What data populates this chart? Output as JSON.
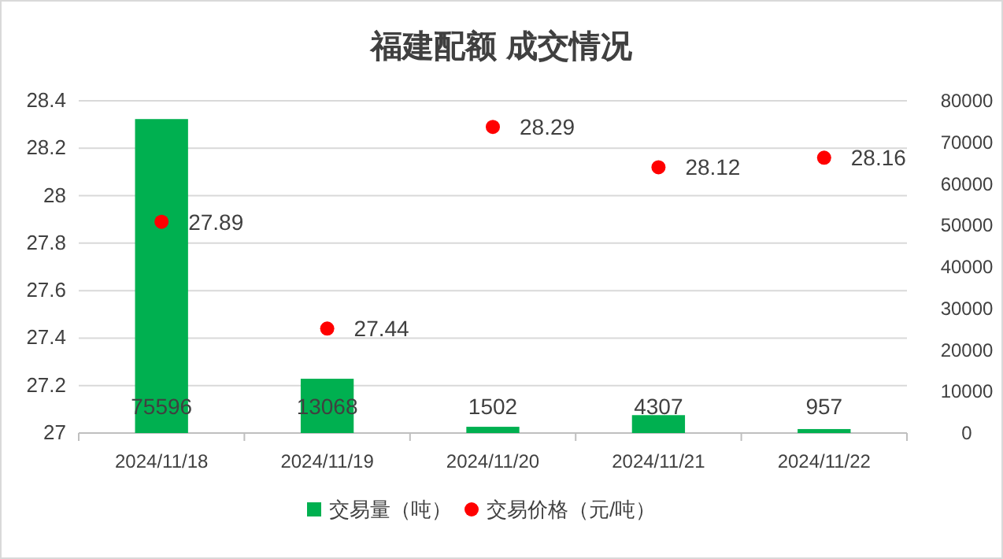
{
  "chart_data": {
    "type": "bar",
    "title": "福建配额 成交情况",
    "categories": [
      "2024/11/18",
      "2024/11/19",
      "2024/11/20",
      "2024/11/21",
      "2024/11/22"
    ],
    "series": [
      {
        "name": "交易量（吨）",
        "axis": "y2",
        "color": "#00b050",
        "values": [
          75596,
          13068,
          1502,
          4307,
          957
        ]
      },
      {
        "name": "交易价格（元/吨）",
        "type": "scatter",
        "marker": "circle",
        "color": "#ff0000",
        "values": [
          27.89,
          27.44,
          28.29,
          28.12,
          28.16
        ]
      }
    ],
    "ylim": [
      27,
      28.4
    ],
    "yticks": [
      27,
      {
        "value": 27.2,
        "label": "27.2"
      },
      {
        "value": 27.4,
        "label": "27.4"
      },
      {
        "value": 27.6,
        "label": "27.6"
      },
      {
        "value": 27.8,
        "label": "27.8"
      },
      28,
      {
        "value": 28.2,
        "label": "28.2"
      },
      {
        "value": 28.4,
        "label": "28.4"
      }
    ],
    "y2lim": [
      0,
      80000
    ],
    "y2ticks": [
      0,
      10000,
      20000,
      30000,
      40000,
      50000,
      60000,
      70000,
      80000
    ],
    "data_labels": true,
    "grid": "y",
    "legend": "bottom"
  }
}
